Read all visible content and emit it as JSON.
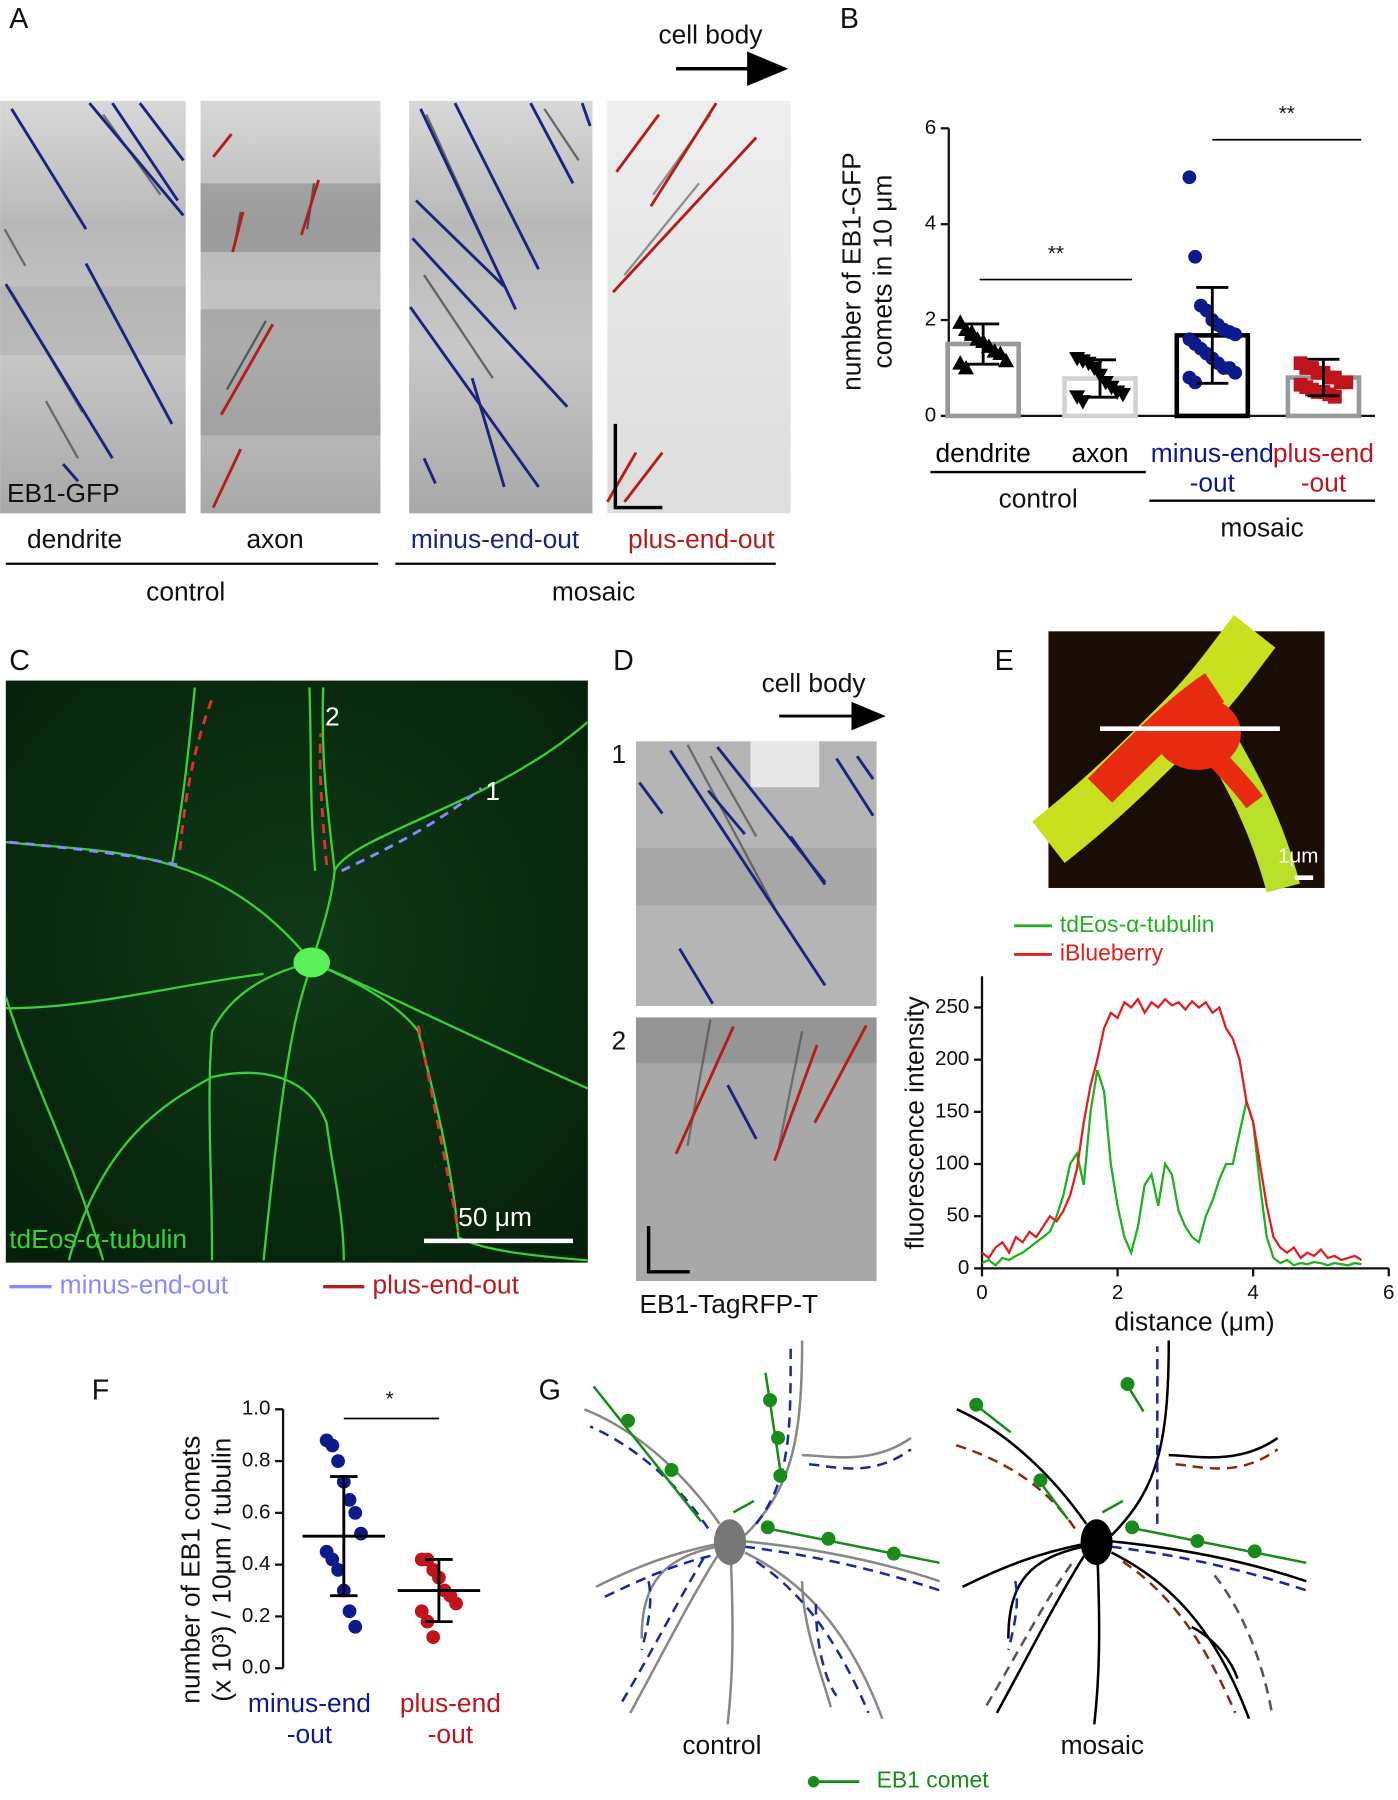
{
  "figure": {
    "panel_labels": [
      "A",
      "B",
      "C",
      "D",
      "E",
      "F",
      "G"
    ],
    "a": {
      "direction": "cell body",
      "lanes": [
        "dendrite",
        "axon",
        "minus-end-out",
        "plus-end-out"
      ],
      "groups": [
        "control",
        "mosaic"
      ],
      "stain": "EB1-GFP"
    },
    "c": {
      "stain": "tdEos-α-tubulin",
      "scale": "50 μm",
      "neurites": [
        "1",
        "2"
      ],
      "legend": [
        "minus-end-out",
        "plus-end-out"
      ]
    },
    "d": {
      "direction": "cell body",
      "rows": [
        "1",
        "2"
      ],
      "stain": "EB1-TagRFP-T"
    },
    "e": {
      "scale": "1μm"
    },
    "g": {
      "conditions": [
        "control",
        "mosaic"
      ],
      "legend": "EB1 comet"
    }
  },
  "chart_data": [
    {
      "type": "bar",
      "ylabel": [
        "number of EB1-GFP",
        "comets in 10 μm"
      ],
      "categories": [
        [
          "dendrite"
        ],
        [
          "axon"
        ],
        [
          "minus-end",
          "-out"
        ],
        [
          "plus-end",
          "-out"
        ]
      ],
      "groups": [
        "control",
        "mosaic"
      ],
      "values": [
        1.5,
        0.78,
        1.68,
        0.8
      ],
      "errors": [
        0.42,
        0.39,
        1.0,
        0.38
      ],
      "points": [
        [
          1.95,
          1.8,
          1.75,
          1.6,
          1.55,
          1.45,
          1.35,
          1.3,
          1.15,
          1.1,
          1.0,
          1.7
        ],
        [
          1.2,
          1.15,
          1.1,
          1.0,
          0.85,
          0.7,
          0.6,
          0.5,
          0.45,
          0.4,
          0.3
        ],
        [
          4.98,
          3.32,
          2.3,
          2.2,
          2.0,
          1.9,
          1.8,
          1.75,
          1.7,
          1.6,
          1.5,
          1.4,
          1.3,
          1.2,
          1.1,
          1.0,
          1.0,
          0.9,
          0.8,
          0.7
        ],
        [
          1.1,
          1.0,
          1.0,
          0.9,
          0.9,
          0.8,
          0.8,
          0.7,
          0.7,
          0.65,
          0.6,
          0.55,
          0.5,
          0.5,
          0.45,
          0.4
        ]
      ],
      "markers": [
        "triangle-up",
        "triangle-down",
        "circle",
        "square"
      ],
      "colors": [
        "#000000",
        "#000000",
        "#0d1a8a",
        "#c0141c"
      ],
      "bar_colors": [
        "#999999",
        "#d2d2d2",
        "#000000",
        "#999999"
      ],
      "significance": [
        "**",
        "**"
      ],
      "ylim": [
        0,
        6
      ],
      "yticks": [
        0,
        2,
        4,
        6
      ]
    },
    {
      "type": "line",
      "xlabel": "distance (μm)",
      "ylabel": "fluorescence intensity",
      "x": [
        0,
        0.1,
        0.2,
        0.3,
        0.4,
        0.5,
        0.6,
        0.7,
        0.8,
        0.9,
        1.0,
        1.1,
        1.2,
        1.3,
        1.4,
        1.5,
        1.6,
        1.7,
        1.8,
        1.9,
        2.0,
        2.1,
        2.2,
        2.3,
        2.4,
        2.5,
        2.6,
        2.7,
        2.8,
        2.9,
        3.0,
        3.1,
        3.2,
        3.3,
        3.4,
        3.5,
        3.6,
        3.7,
        3.8,
        3.9,
        4.0,
        4.1,
        4.2,
        4.3,
        4.4,
        4.5,
        4.6,
        4.7,
        4.8,
        4.9,
        5.0,
        5.1,
        5.2,
        5.3,
        5.4,
        5.5,
        5.6
      ],
      "series": [
        {
          "name": "tdEos-α-tubulin",
          "color": "#22b022",
          "values": [
            5,
            8,
            3,
            10,
            8,
            12,
            15,
            20,
            25,
            30,
            35,
            50,
            70,
            100,
            110,
            80,
            150,
            190,
            170,
            100,
            60,
            30,
            15,
            40,
            80,
            90,
            60,
            100,
            90,
            55,
            40,
            30,
            25,
            50,
            65,
            85,
            100,
            100,
            130,
            160,
            140,
            80,
            30,
            10,
            5,
            8,
            3,
            5,
            4,
            6,
            5,
            3,
            5,
            4,
            3,
            5,
            4
          ]
        },
        {
          "name": "iBlueberry",
          "color": "#e02020",
          "values": [
            15,
            10,
            20,
            25,
            15,
            30,
            25,
            35,
            30,
            40,
            50,
            45,
            55,
            70,
            95,
            140,
            175,
            200,
            230,
            245,
            240,
            255,
            250,
            258,
            245,
            255,
            250,
            258,
            252,
            255,
            248,
            256,
            250,
            255,
            245,
            250,
            230,
            220,
            200,
            160,
            140,
            100,
            60,
            30,
            20,
            15,
            20,
            10,
            15,
            12,
            18,
            10,
            12,
            8,
            10,
            12,
            8
          ]
        }
      ],
      "xlim": [
        0,
        6
      ],
      "xticks": [
        0,
        2,
        4,
        6
      ],
      "ylim": [
        0,
        280
      ],
      "yticks": [
        0,
        50,
        100,
        150,
        200,
        250
      ]
    },
    {
      "type": "scatter",
      "ylabel": [
        "number of EB1 comets",
        "(x 10³) / 10μm / tubulin"
      ],
      "categories": [
        [
          "minus-end",
          "-out"
        ],
        [
          "plus-end",
          "-out"
        ]
      ],
      "colors": [
        "#0d1a8a",
        "#c0141c"
      ],
      "points": [
        [
          0.88,
          0.86,
          0.8,
          0.72,
          0.65,
          0.6,
          0.52,
          0.45,
          0.42,
          0.38,
          0.3,
          0.22,
          0.16
        ],
        [
          0.42,
          0.42,
          0.38,
          0.35,
          0.3,
          0.28,
          0.25,
          0.22,
          0.18,
          0.12
        ]
      ],
      "means": [
        0.51,
        0.3
      ],
      "errors": [
        0.23,
        0.12
      ],
      "significance": [
        "*"
      ],
      "ylim": [
        0,
        1
      ],
      "yticks": [
        {
          "value": 0,
          "label": "0.0"
        },
        0.2,
        0.4,
        0.6,
        0.8,
        {
          "value": 1,
          "label": "1.0"
        }
      ]
    }
  ]
}
